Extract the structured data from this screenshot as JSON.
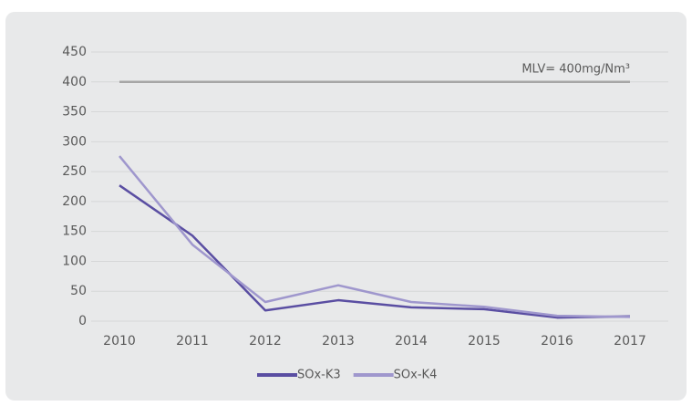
{
  "chart_data": {
    "type": "line",
    "categories": [
      "2010",
      "2011",
      "2012",
      "2013",
      "2014",
      "2015",
      "2016",
      "2017"
    ],
    "series": [
      {
        "name": "SOx-K3",
        "color": "#5a4ea2",
        "values": [
          227,
          143,
          18,
          35,
          23,
          20,
          6,
          8
        ]
      },
      {
        "name": "SOx-K4",
        "color": "#9f97cd",
        "values": [
          276,
          128,
          32,
          60,
          32,
          24,
          9,
          7
        ]
      }
    ],
    "reference_line": {
      "value": 400,
      "label": "MLV= 400mg/Nm³",
      "color": "#a6a6a6"
    },
    "ylim": [
      0,
      450
    ],
    "yticks": [
      0,
      50,
      100,
      150,
      200,
      250,
      300,
      350,
      400,
      450
    ],
    "grid": true,
    "legend": "bottom"
  }
}
